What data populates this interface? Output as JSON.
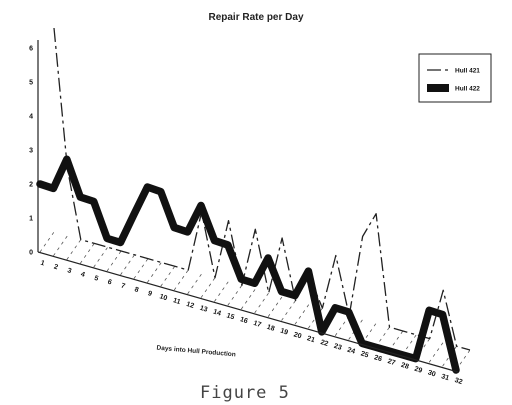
{
  "chart_data": {
    "type": "line",
    "title": "Repair Rate per Day",
    "xlabel": "Days into Hull Production",
    "ylabel": "",
    "x": [
      "1",
      "2",
      "3",
      "4",
      "5",
      "6",
      "7",
      "8",
      "9",
      "10",
      "11",
      "12",
      "13",
      "14",
      "15",
      "16",
      "17",
      "18",
      "19",
      "20",
      "21",
      "22",
      "23",
      "24",
      "25",
      "26",
      "27",
      "28",
      "29",
      "30",
      "31",
      "32"
    ],
    "yticks": [
      "0",
      "1",
      "2",
      "3",
      "4",
      "5",
      "6"
    ],
    "ylim": [
      0,
      6
    ],
    "series": [
      {
        "name": "Hull 421",
        "color": "#222222",
        "style": "dashed",
        "values": [
          6,
          2,
          0,
          0,
          0,
          0,
          0,
          0,
          0,
          0,
          0,
          2,
          0,
          2,
          0,
          2,
          0,
          2,
          0,
          1,
          0,
          2,
          0,
          3,
          4,
          0,
          0,
          0,
          0,
          2,
          0,
          0
        ]
      },
      {
        "name": "Hull 422",
        "color": "#111111",
        "style": "thick-ribbon",
        "values": [
          2,
          2,
          3,
          2,
          2,
          1,
          1,
          2,
          3,
          3,
          2,
          2,
          3,
          2,
          2,
          1,
          1,
          2,
          1,
          1,
          2,
          0,
          1,
          1,
          0,
          0,
          0,
          0,
          0,
          2,
          2,
          0
        ]
      }
    ],
    "legend": {
      "position": "top-right",
      "entries": [
        "Hull 421",
        "Hull 422"
      ]
    },
    "grid": false,
    "projection": "3d-perspective"
  },
  "caption": "Figure 5",
  "colors": {
    "background": "#ffffff",
    "ink": "#111111"
  }
}
